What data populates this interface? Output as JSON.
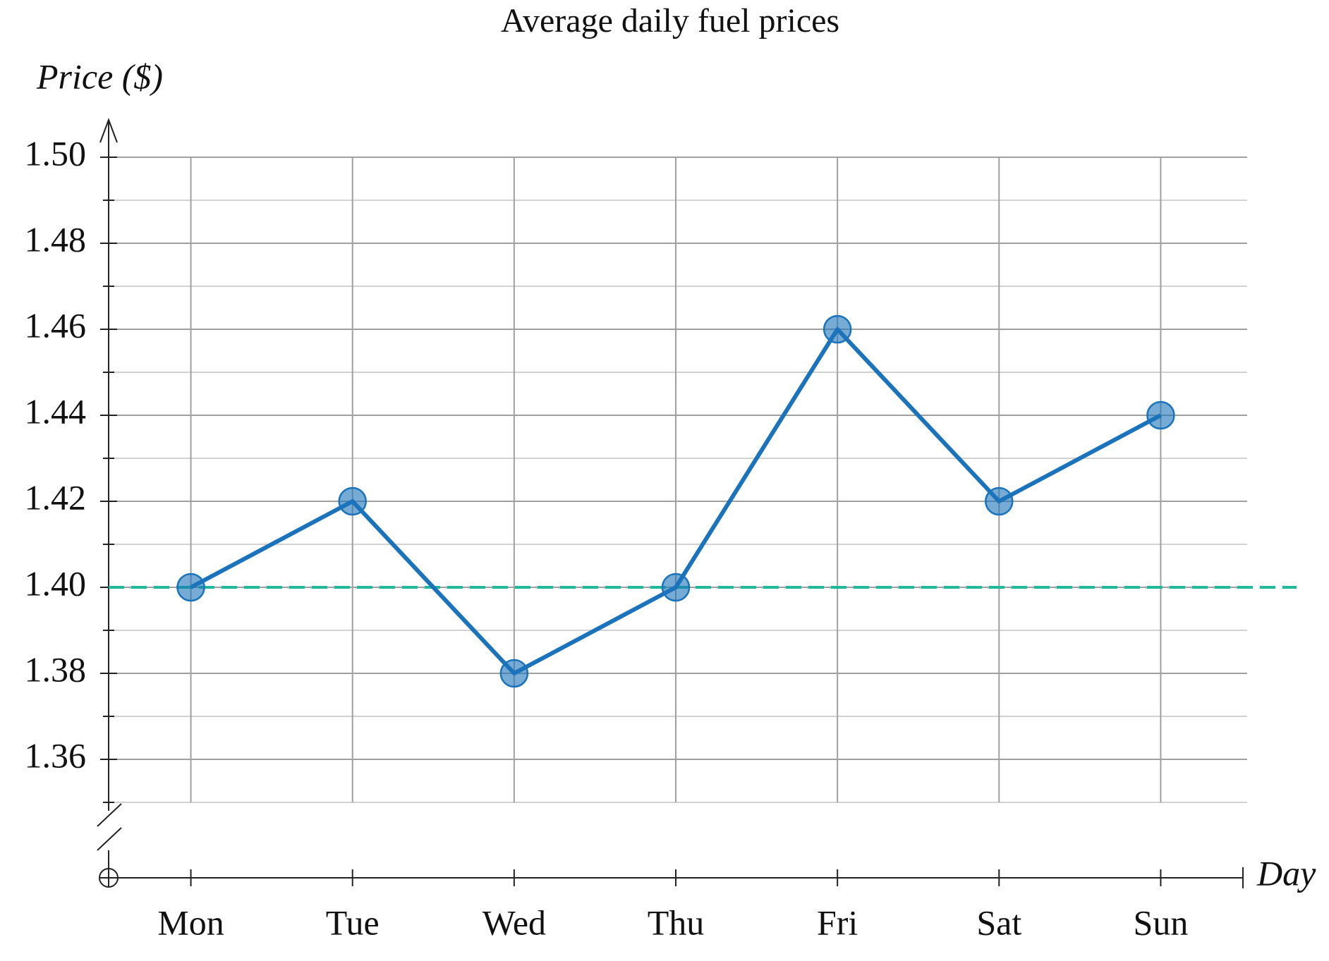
{
  "chart_data": {
    "type": "line",
    "title": "Average daily fuel prices",
    "y_label": "Price ($)",
    "x_label": "Day",
    "categories": [
      "Mon",
      "Tue",
      "Wed",
      "Thu",
      "Fri",
      "Sat",
      "Sun"
    ],
    "series": [
      {
        "name": "Price",
        "color": "#1a73bb",
        "values": [
          1.4,
          1.42,
          1.38,
          1.4,
          1.46,
          1.42,
          1.44
        ]
      }
    ],
    "ylim": [
      1.35,
      1.5
    ],
    "yticks": [
      1.36,
      1.38,
      {
        "value": 1.4,
        "label": "1.40"
      },
      1.42,
      1.44,
      1.46,
      1.48,
      {
        "value": 1.5,
        "label": "1.50"
      }
    ],
    "grid": true,
    "minor_grid": true,
    "reference_line": {
      "value": 1.4,
      "color": "#1fb89a"
    }
  }
}
